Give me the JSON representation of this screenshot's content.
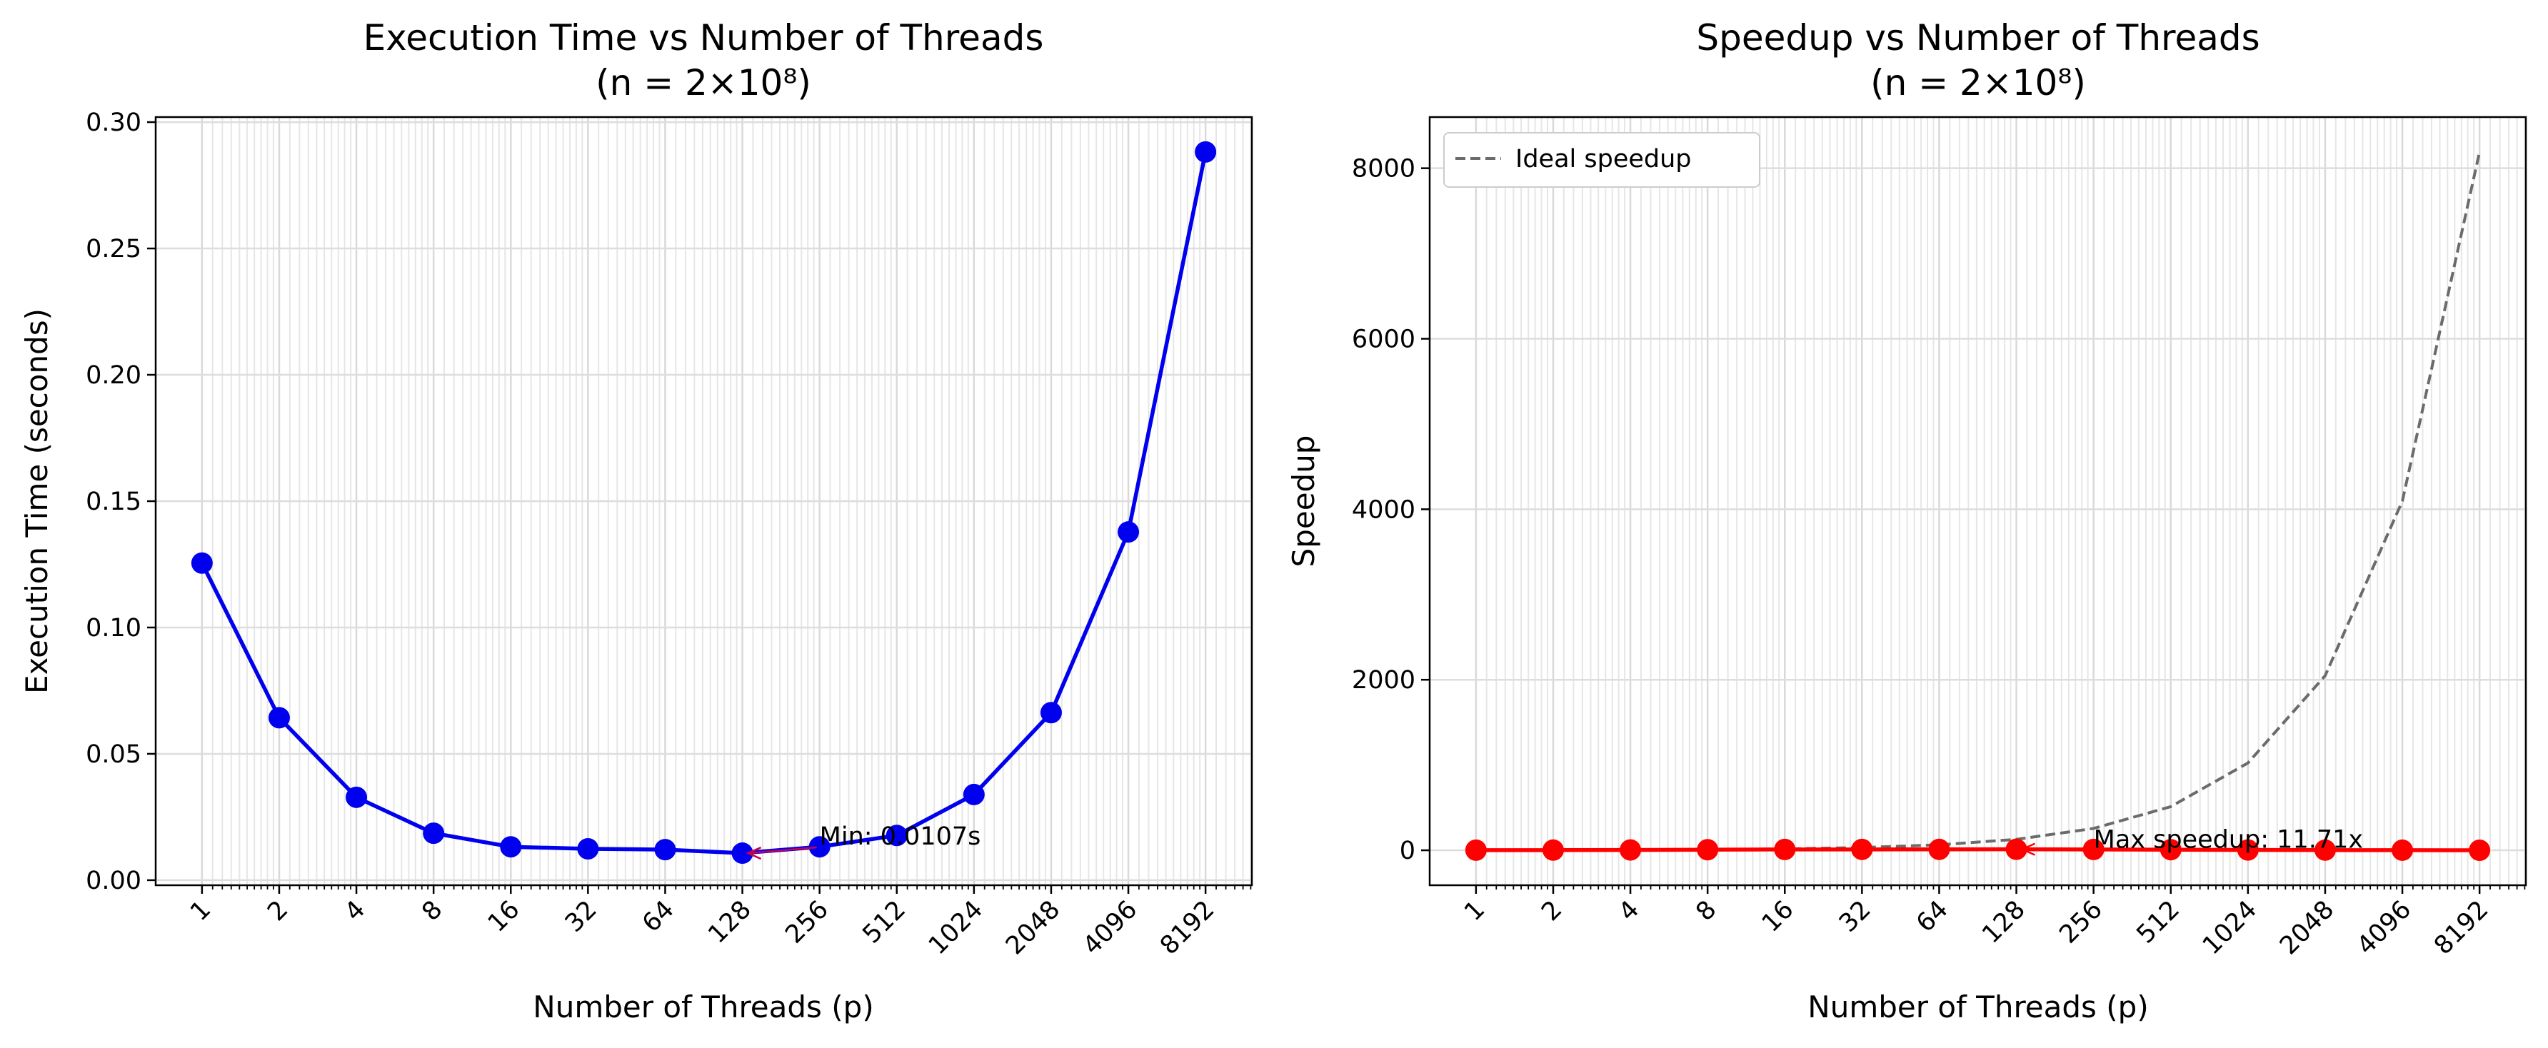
{
  "chart_data": [
    {
      "type": "line",
      "title": "Execution Time vs Number of Threads",
      "subtitle": "(n = 2×10⁸)",
      "xlabel": "Number of Threads (p)",
      "ylabel": "Execution Time (seconds)",
      "xscale": "log2",
      "grid": true,
      "x": [
        1,
        2,
        4,
        8,
        16,
        32,
        64,
        128,
        256,
        512,
        1024,
        2048,
        4096,
        8192
      ],
      "xtick_labels": [
        "1",
        "2",
        "4",
        "8",
        "16",
        "32",
        "64",
        "128",
        "256",
        "512",
        "1024",
        "2048",
        "4096",
        "8192"
      ],
      "ylim": [
        -0.002,
        0.302
      ],
      "yticks": [
        0.0,
        0.05,
        0.1,
        0.15,
        0.2,
        0.25,
        0.3
      ],
      "ytick_labels": [
        "0.00",
        "0.05",
        "0.10",
        "0.15",
        "0.20",
        "0.25",
        "0.30"
      ],
      "series": [
        {
          "color": "#0000ee",
          "values": [
            0.1255,
            0.0643,
            0.0328,
            0.0186,
            0.0132,
            0.0124,
            0.0121,
            0.0107,
            0.0132,
            0.0177,
            0.0339,
            0.0663,
            0.1378,
            0.2882
          ]
        }
      ],
      "annotation": {
        "text": "Min: 0.0107s",
        "x": 128,
        "y": 0.0107,
        "color": "#cc0044"
      }
    },
    {
      "type": "line",
      "title": "Speedup vs Number of Threads",
      "subtitle": "(n = 2×10⁸)",
      "xlabel": "Number of Threads (p)",
      "ylabel": "Speedup",
      "xscale": "log2",
      "grid": true,
      "legend": "top-left",
      "x": [
        1,
        2,
        4,
        8,
        16,
        32,
        64,
        128,
        256,
        512,
        1024,
        2048,
        4096,
        8192
      ],
      "xtick_labels": [
        "1",
        "2",
        "4",
        "8",
        "16",
        "32",
        "64",
        "128",
        "256",
        "512",
        "1024",
        "2048",
        "4096",
        "8192"
      ],
      "ylim": [
        -410,
        8600
      ],
      "yticks": [
        0,
        2000,
        4000,
        6000,
        8000
      ],
      "ytick_labels": [
        "0",
        "2000",
        "4000",
        "6000",
        "8000"
      ],
      "series": [
        {
          "name": "Ideal speedup",
          "color": "#6b6b6b",
          "style": "dashed",
          "values": [
            1,
            2,
            4,
            8,
            16,
            32,
            64,
            128,
            256,
            512,
            1024,
            2048,
            4096,
            8192
          ]
        },
        {
          "color": "#ff0000",
          "values": [
            1.0,
            1.95,
            3.83,
            6.75,
            9.51,
            10.12,
            10.37,
            11.71,
            9.51,
            7.09,
            3.7,
            1.89,
            0.91,
            0.44
          ]
        }
      ],
      "annotation": {
        "text": "Max speedup: 11.71x",
        "x": 128,
        "y": 11.71,
        "color": "#ff0000"
      }
    }
  ]
}
